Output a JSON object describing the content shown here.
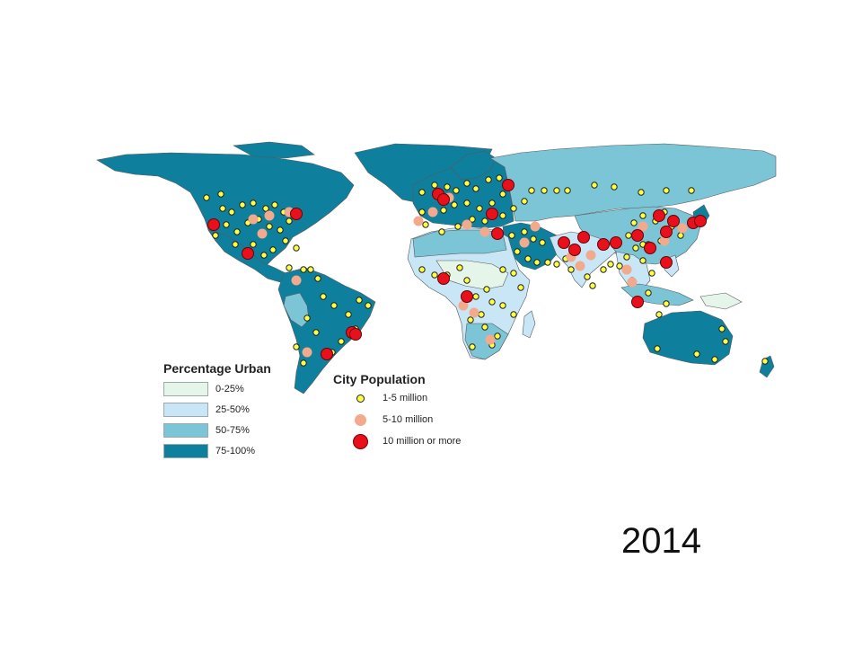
{
  "colors": {
    "urban_0_25": "#e6f5ea",
    "urban_25_50": "#c8e6f5",
    "urban_50_75": "#7cc5d6",
    "urban_75_100": "#0f7f9e",
    "city_small": "#ffff44",
    "city_medium": "#f3a98c",
    "city_large": "#e8101a",
    "border": "#555a5e"
  },
  "legend_urban": {
    "title": "Percentage Urban",
    "items": [
      {
        "label": "0-25%",
        "color_key": "urban_0_25"
      },
      {
        "label": "25-50%",
        "color_key": "urban_25_50"
      },
      {
        "label": "50-75%",
        "color_key": "urban_50_75"
      },
      {
        "label": "75-100%",
        "color_key": "urban_75_100"
      }
    ]
  },
  "legend_city": {
    "title": "City Population",
    "items": [
      {
        "label": "1-5 million",
        "color_key": "city_small"
      },
      {
        "label": "5-10 million",
        "color_key": "city_medium"
      },
      {
        "label": "10 million or more",
        "color_key": "city_large"
      }
    ]
  },
  "year": "2014"
}
